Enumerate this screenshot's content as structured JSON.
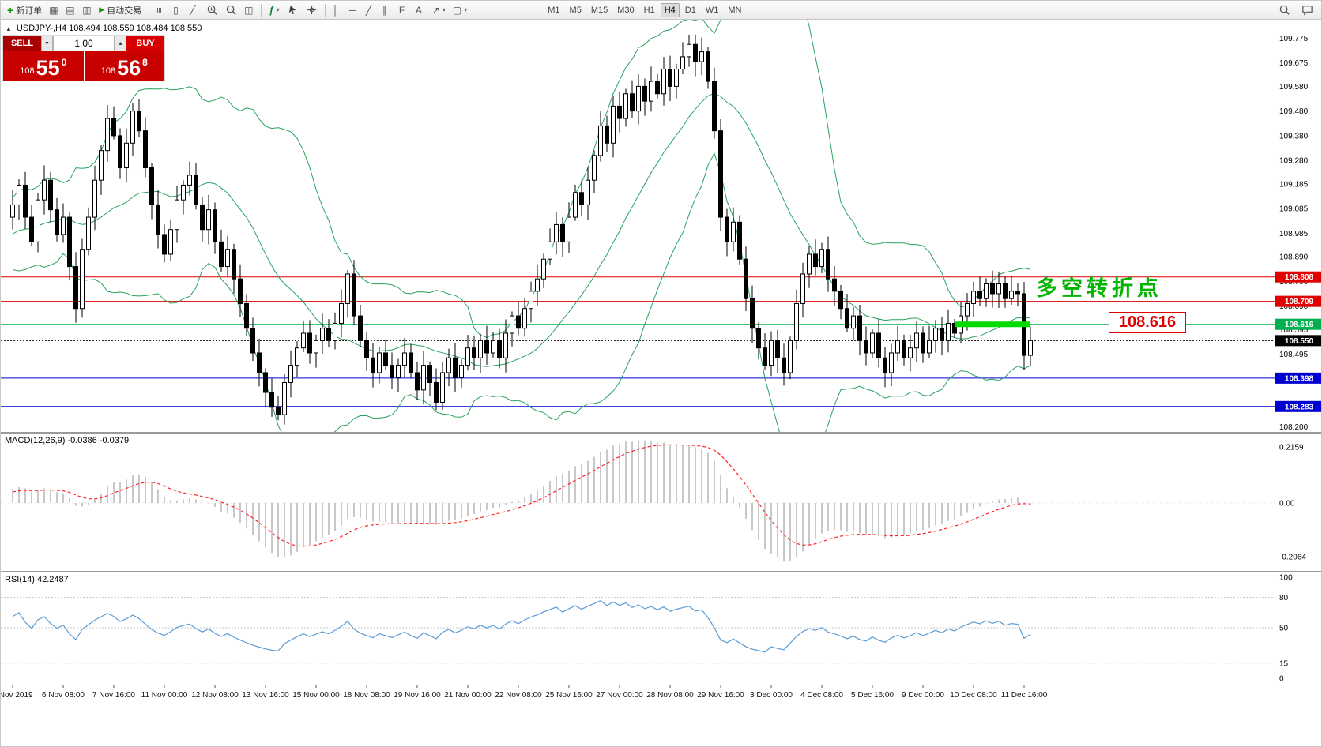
{
  "toolbar": {
    "new_order_label": "新订单",
    "auto_trading_label": "自动交易",
    "timeframes": [
      "M1",
      "M5",
      "M15",
      "M30",
      "H1",
      "H4",
      "D1",
      "W1",
      "MN"
    ],
    "active_timeframe": "H4",
    "glyphs": {
      "new_order": "+",
      "charts": "▦",
      "market_watch": "▤",
      "navigator": "▥",
      "play": "▶",
      "bars": "≡",
      "candles": "▯",
      "line_chart": "╱",
      "tile": "◫",
      "indicators": "ƒ",
      "caret": "▾",
      "vline": "│",
      "hline": "─",
      "tline": "╱",
      "channel": "∥",
      "fibo": "F",
      "text": "A",
      "arrows": "↗",
      "shapes": "▢",
      "toggle": "▲"
    }
  },
  "chart": {
    "title": "USDJPY-,H4  108.494 108.559 108.484 108.550",
    "trade_panel": {
      "sell_label": "SELL",
      "buy_label": "BUY",
      "volume": "1.00",
      "bid_prefix": "108",
      "bid_big": "55",
      "bid_sup": "0",
      "ask_prefix": "108",
      "ask_big": "56",
      "ask_sup": "8"
    },
    "annotation": "多空转折点",
    "callout": "108.616",
    "y_labels": [
      "109.775",
      "109.675",
      "109.580",
      "109.480",
      "109.380",
      "109.280",
      "109.185",
      "109.085",
      "108.985",
      "108.890",
      "108.790",
      "108.690",
      "108.595",
      "108.495",
      "108.200"
    ],
    "levels": [
      {
        "value": 108.808,
        "label": "108.808",
        "color": "#e00000",
        "style": "solid",
        "tag": true
      },
      {
        "value": 108.709,
        "label": "108.709",
        "color": "#e00000",
        "style": "solid",
        "tag": true
      },
      {
        "value": 108.616,
        "label": "108.616",
        "color": "#00b050",
        "style": "solid",
        "tag": true
      },
      {
        "value": 108.55,
        "label": "108.550",
        "color": "#000000",
        "style": "dotted",
        "tag": true
      },
      {
        "value": 108.398,
        "label": "108.398",
        "color": "#0000d0",
        "style": "solid",
        "tag": true
      },
      {
        "value": 108.283,
        "label": "108.283",
        "color": "#0000d0",
        "style": "solid",
        "tag": true
      }
    ],
    "green_segment": {
      "price": 108.616,
      "from_bar": 149,
      "to_bar": 160
    },
    "time_labels": [
      "5 Nov 2019",
      "6 Nov 08:00",
      "7 Nov 16:00",
      "11 Nov 00:00",
      "12 Nov 08:00",
      "13 Nov 16:00",
      "15 Nov 00:00",
      "18 Nov 08:00",
      "19 Nov 16:00",
      "21 Nov 00:00",
      "22 Nov 08:00",
      "25 Nov 16:00",
      "27 Nov 00:00",
      "28 Nov 08:00",
      "29 Nov 16:00",
      "3 Dec 00:00",
      "4 Dec 08:00",
      "5 Dec 16:00",
      "9 Dec 00:00",
      "10 Dec 08:00",
      "11 Dec 16:00"
    ],
    "colors": {
      "red_level": "#e00000",
      "green_level": "#00b050",
      "blue_level": "#0000d0",
      "current_price_tag": "#000000",
      "bollinger": "#27a35d",
      "highlight": "#00dc00",
      "annotation": "#00b400",
      "macd_hist": "#b0b0b0",
      "macd_signal": "#ff2020",
      "rsi_line": "#5b9bd5",
      "candle_up": "#ffffff",
      "candle_down": "#000000"
    }
  },
  "macd": {
    "label": "MACD(12,26,9) -0.0386 -0.0379",
    "scale_max": "0.2159",
    "scale_zero": "0.00",
    "scale_min": "-0.2064"
  },
  "rsi": {
    "label": "RSI(14) 42.2487",
    "scale": [
      "100",
      "80",
      "50",
      "15",
      "0"
    ]
  },
  "chart_data": {
    "type": "candlestick",
    "symbol": "USDJPY-",
    "timeframe": "H4",
    "price_range_top": 109.85,
    "price_range_bottom": 108.18,
    "pre_closes": [
      108.85,
      108.9,
      108.95,
      108.88,
      108.92,
      109.0,
      108.95,
      108.9,
      108.85,
      108.92,
      108.98,
      109.05,
      109.0,
      108.95,
      109.02,
      109.08,
      109.0,
      109.05,
      109.1,
      109.05
    ],
    "closes": [
      109.1,
      109.18,
      109.05,
      108.95,
      109.12,
      109.2,
      109.08,
      108.98,
      109.05,
      108.85,
      108.68,
      108.92,
      109.05,
      109.2,
      109.32,
      109.45,
      109.38,
      109.25,
      109.35,
      109.48,
      109.4,
      109.25,
      109.1,
      108.98,
      108.9,
      109.0,
      109.12,
      109.18,
      109.22,
      109.1,
      109.0,
      109.08,
      108.95,
      108.85,
      108.92,
      108.8,
      108.7,
      108.6,
      108.5,
      108.42,
      108.34,
      108.28,
      108.25,
      108.38,
      108.45,
      108.52,
      108.58,
      108.5,
      108.55,
      108.6,
      108.55,
      108.62,
      108.7,
      108.82,
      108.65,
      108.55,
      108.48,
      108.42,
      108.5,
      108.45,
      108.4,
      108.45,
      108.5,
      108.42,
      108.35,
      108.45,
      108.38,
      108.3,
      108.42,
      108.48,
      108.4,
      108.45,
      108.52,
      108.48,
      108.55,
      108.5,
      108.55,
      108.48,
      108.58,
      108.65,
      108.6,
      108.68,
      108.75,
      108.8,
      108.88,
      108.95,
      109.02,
      108.95,
      109.05,
      109.15,
      109.1,
      109.2,
      109.3,
      109.42,
      109.35,
      109.5,
      109.45,
      109.55,
      109.48,
      109.58,
      109.52,
      109.6,
      109.55,
      109.65,
      109.58,
      109.65,
      109.7,
      109.75,
      109.68,
      109.72,
      109.6,
      109.4,
      109.05,
      108.95,
      109.03,
      108.88,
      108.72,
      108.6,
      108.52,
      108.45,
      108.55,
      108.48,
      108.42,
      108.55,
      108.7,
      108.82,
      108.9,
      108.85,
      108.92,
      108.8,
      108.75,
      108.68,
      108.6,
      108.65,
      108.55,
      108.5,
      108.58,
      108.48,
      108.42,
      108.5,
      108.55,
      108.48,
      108.52,
      108.58,
      108.5,
      108.55,
      108.6,
      108.55,
      108.62,
      108.58,
      108.65,
      108.7,
      108.75,
      108.72,
      108.78,
      108.74,
      108.78,
      108.72,
      108.75,
      108.74,
      108.49,
      108.55
    ],
    "indicators": {
      "bollinger": {
        "period": 20,
        "deviation": 2
      },
      "macd": {
        "fast": 12,
        "slow": 26,
        "signal": 9,
        "value": "-0.0386",
        "signal_value": "-0.0379"
      },
      "rsi": {
        "period": 14,
        "value": "42.2487",
        "levels": [
          80,
          50,
          15
        ]
      }
    }
  }
}
